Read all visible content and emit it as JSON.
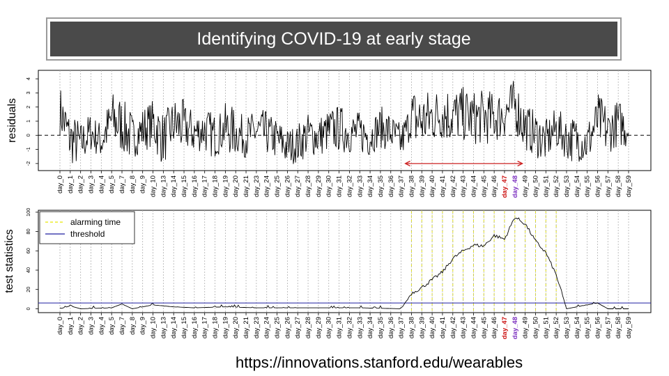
{
  "slide": {
    "title": "Identifying COVID-19 at early stage",
    "footer_url": "https://innovations.stanford.edu/wearables"
  },
  "colors": {
    "title_bg": "#4a4a4a",
    "arrow": "#cc2222",
    "alarm_line": "#e6e600",
    "threshold": "#1f1fa0",
    "highlight_day_47": "#cc1111",
    "highlight_day_48": "#7b2fbf",
    "day_line": "#b0b0b0"
  },
  "chart_data": [
    {
      "type": "line",
      "ylabel": "residuals",
      "ylim": [
        -2.5,
        4.6
      ],
      "yticks": [
        -2,
        -1,
        0,
        1,
        2,
        3,
        4
      ],
      "day_labels": [
        "day_0",
        "day_1",
        "day_2",
        "day_3",
        "day_4",
        "day_5",
        "day_7",
        "day_8",
        "day_9",
        "day_10",
        "day_13",
        "day_14",
        "day_15",
        "day_16",
        "day_17",
        "day_18",
        "day_19",
        "day_20",
        "day_21",
        "day_23",
        "day_24",
        "day_25",
        "day_26",
        "day_27",
        "day_28",
        "day_29",
        "day_30",
        "day_31",
        "day_32",
        "day_33",
        "day_34",
        "day_35",
        "day_36",
        "day_37",
        "day_38",
        "day_39",
        "day_40",
        "day_41",
        "day_42",
        "day_43",
        "day_44",
        "day_45",
        "day_46",
        "day_47",
        "day_48",
        "day_49",
        "day_50",
        "day_51",
        "day_52",
        "day_53",
        "day_54",
        "day_55",
        "day_56",
        "day_57",
        "day_58",
        "day_59"
      ],
      "highlight_labels": {
        "day_47": "highlight_day_47",
        "day_48": "highlight_day_48"
      },
      "reference_line": {
        "y": 0,
        "style": "dashed"
      },
      "arrow": {
        "from_day": "day_37",
        "to_day": "day_49",
        "heads": "both"
      },
      "series": [
        {
          "values_by_day": [
            1.8,
            -0.3,
            -0.6,
            0.2,
            -0.4,
            1.1,
            0.7,
            -0.2,
            0.4,
            0.9,
            -0.3,
            0.8,
            0.6,
            0.2,
            0.4,
            -0.1,
            0.5,
            0.2,
            -0.1,
            0.3,
            0.1,
            -0.3,
            -0.8,
            -0.6,
            0.1,
            -0.1,
            0.3,
            0.5,
            0.2,
            0.2,
            -0.1,
            0.6,
            0.2,
            -0.5,
            1.2,
            1.0,
            1.3,
            1.6,
            1.4,
            1.5,
            1.2,
            1.3,
            1.2,
            1.6,
            2.2,
            0.6,
            0.1,
            -0.4,
            0.5,
            -0.2,
            -0.3,
            -0.6,
            1.1,
            0.3,
            0.9,
            0.5
          ],
          "spread_by_day": [
            1.2,
            1.2,
            1.0,
            0.9,
            1.1,
            1.4,
            1.3,
            1.0,
            1.1,
            1.3,
            1.2,
            1.3,
            1.1,
            1.0,
            1.1,
            1.0,
            1.2,
            1.0,
            1.0,
            1.1,
            1.0,
            1.0,
            0.9,
            1.0,
            1.0,
            1.0,
            1.1,
            1.1,
            1.0,
            1.0,
            0.9,
            1.0,
            0.9,
            0.9,
            1.5,
            1.4,
            1.3,
            1.4,
            1.3,
            1.3,
            1.3,
            1.3,
            1.2,
            1.2,
            1.3,
            1.1,
            1.1,
            1.0,
            1.0,
            1.1,
            1.0,
            1.1,
            1.3,
            1.1,
            1.1,
            1.0
          ],
          "min": -2.3,
          "max": 4.2
        }
      ]
    },
    {
      "type": "line",
      "ylabel": "test statistics",
      "ylim": [
        -4,
        102
      ],
      "yticks": [
        0,
        20,
        40,
        60,
        80,
        100
      ],
      "day_labels": [
        "day_0",
        "day_1",
        "day_2",
        "day_3",
        "day_4",
        "day_5",
        "day_7",
        "day_8",
        "day_9",
        "day_10",
        "day_13",
        "day_14",
        "day_15",
        "day_16",
        "day_17",
        "day_18",
        "day_19",
        "day_20",
        "day_21",
        "day_23",
        "day_24",
        "day_25",
        "day_26",
        "day_27",
        "day_28",
        "day_29",
        "day_30",
        "day_31",
        "day_32",
        "day_33",
        "day_34",
        "day_35",
        "day_36",
        "day_37",
        "day_38",
        "day_39",
        "day_40",
        "day_41",
        "day_42",
        "day_43",
        "day_44",
        "day_45",
        "day_46",
        "day_47",
        "day_48",
        "day_49",
        "day_50",
        "day_51",
        "day_52",
        "day_53",
        "day_54",
        "day_55",
        "day_56",
        "day_57",
        "day_58",
        "day_59"
      ],
      "highlight_labels": {
        "day_47": "highlight_day_47",
        "day_48": "highlight_day_48"
      },
      "threshold": 6,
      "alarming_days": [
        "day_38",
        "day_39",
        "day_40",
        "day_41",
        "day_42",
        "day_43",
        "day_44",
        "day_45",
        "day_46",
        "day_47",
        "day_48",
        "day_49",
        "day_50",
        "day_51",
        "day_52"
      ],
      "legend": {
        "position": "top-left",
        "entries": [
          {
            "label": "alarming time",
            "style": "dashed",
            "color_key": "alarm_line"
          },
          {
            "label": "threshold",
            "style": "solid",
            "color_key": "threshold"
          }
        ]
      },
      "series": [
        {
          "points": [
            {
              "day": "day_0",
              "value": 0
            },
            {
              "day": "day_1",
              "value": 3
            },
            {
              "day": "day_2",
              "value": 0
            },
            {
              "day": "day_5",
              "value": 1
            },
            {
              "day": "day_7",
              "value": 5
            },
            {
              "day": "day_8",
              "value": 0
            },
            {
              "day": "day_10",
              "value": 4
            },
            {
              "day": "day_14",
              "value": 2
            },
            {
              "day": "day_16",
              "value": 1
            },
            {
              "day": "day_19",
              "value": 2
            },
            {
              "day": "day_23",
              "value": 1
            },
            {
              "day": "day_31",
              "value": 1
            },
            {
              "day": "day_33",
              "value": 1
            },
            {
              "day": "day_37",
              "value": 0
            },
            {
              "day": "day_38",
              "value": 16
            },
            {
              "day": "day_39",
              "value": 22
            },
            {
              "day": "day_40",
              "value": 30
            },
            {
              "day": "day_41",
              "value": 38
            },
            {
              "day": "day_42",
              "value": 52
            },
            {
              "day": "day_43",
              "value": 60
            },
            {
              "day": "day_44",
              "value": 66
            },
            {
              "day": "day_45",
              "value": 65
            },
            {
              "day": "day_46",
              "value": 76
            },
            {
              "day": "day_47",
              "value": 72
            },
            {
              "day": "day_48",
              "value": 95
            },
            {
              "day": "day_49",
              "value": 88
            },
            {
              "day": "day_50",
              "value": 70
            },
            {
              "day": "day_51",
              "value": 58
            },
            {
              "day": "day_52",
              "value": 35
            },
            {
              "day": "day_53",
              "value": 0
            },
            {
              "day": "day_56",
              "value": 6
            },
            {
              "day": "day_57",
              "value": 0
            },
            {
              "day": "day_59",
              "value": 0
            }
          ]
        }
      ]
    }
  ]
}
